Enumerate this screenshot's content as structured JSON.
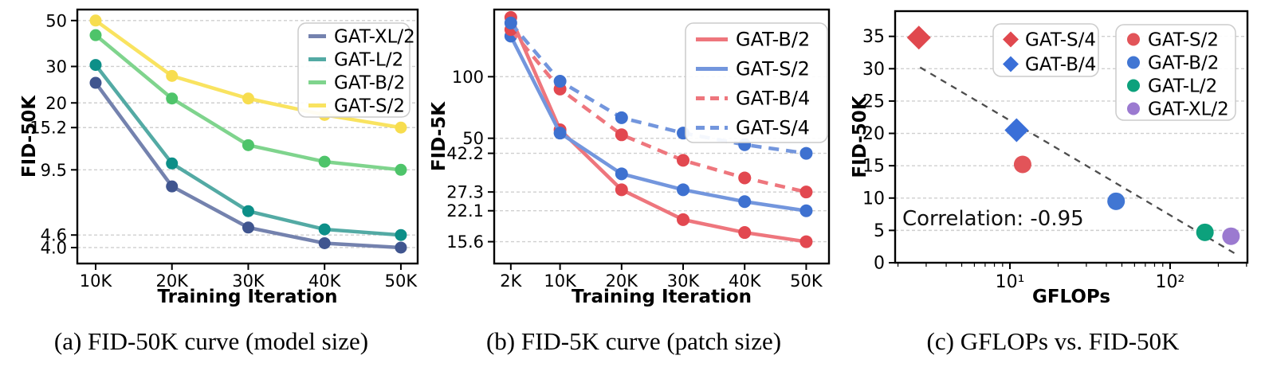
{
  "figure": {
    "background": "#ffffff",
    "gridline_color": "#cfcfcf",
    "frame_color": "#000000"
  },
  "chart_data": [
    {
      "id": "a",
      "type": "line",
      "caption": "(a) FID-50K curve (model size)",
      "xlabel": "Training Iteration",
      "ylabel": "FID-50K",
      "x_scale": "linear",
      "y_scale": "log",
      "grid": "horizontal-dashed",
      "legend_position": "top-right",
      "x": [
        10000,
        20000,
        30000,
        40000,
        50000
      ],
      "x_tick_labels": [
        "10K",
        "20K",
        "30K",
        "40K",
        "50K"
      ],
      "x_range": [
        7600,
        52200
      ],
      "y_range": [
        3.35,
        56.5
      ],
      "y_ticks": [
        50,
        30,
        20,
        15.2,
        9.5,
        4.6,
        4.0
      ],
      "y_tick_labels": [
        "50",
        "30",
        "20",
        "15.2",
        "9.5",
        "4.6",
        "4.0"
      ],
      "series": [
        {
          "name": "GAT-XL/2",
          "values": [
            25.0,
            7.9,
            5.0,
            4.2,
            4.0
          ],
          "line_color": "#7482ae",
          "marker_color": "#40558f",
          "dash": false
        },
        {
          "name": "GAT-L/2",
          "values": [
            30.5,
            10.2,
            6.0,
            4.9,
            4.6
          ],
          "line_color": "#53aaa4",
          "marker_color": "#0d8f88",
          "dash": false
        },
        {
          "name": "GAT-B/2",
          "values": [
            42.5,
            21.0,
            12.5,
            10.4,
            9.5
          ],
          "line_color": "#7fd48d",
          "marker_color": "#4ec46a",
          "dash": false
        },
        {
          "name": "GAT-S/2",
          "values": [
            50.0,
            27.0,
            21.0,
            17.5,
            15.2
          ],
          "line_color": "#f9e360",
          "marker_color": "#f7dd4f",
          "dash": false
        }
      ]
    },
    {
      "id": "b",
      "type": "line",
      "caption": "(b) FID-5K curve (patch size)",
      "xlabel": "Training Iteration",
      "ylabel": "FID-5K",
      "x_scale": "linear",
      "y_scale": "log",
      "grid": "horizontal-dashed",
      "legend_position": "top-right",
      "x": [
        2000,
        10000,
        20000,
        30000,
        40000,
        50000
      ],
      "x_tick_labels": [
        "2K",
        "10K",
        "20K",
        "30K",
        "40K",
        "50K"
      ],
      "x_range": [
        -700,
        53700
      ],
      "y_range": [
        12.2,
        213
      ],
      "y_ticks": [
        100,
        50,
        42.2,
        27.3,
        22.1,
        15.6
      ],
      "y_tick_labels": [
        "100",
        "50",
        "42.2",
        "27.3",
        "22.1",
        "15.6"
      ],
      "series": [
        {
          "name": "GAT-B/2",
          "values": [
            195,
            55,
            28,
            20,
            17.3,
            15.6
          ],
          "line_color": "#ee767d",
          "marker_color": "#e24850",
          "dash": false
        },
        {
          "name": "GAT-S/2",
          "values": [
            158,
            53,
            33.5,
            28,
            24.5,
            22.1
          ],
          "line_color": "#7396dd",
          "marker_color": "#3e71d0",
          "dash": false
        },
        {
          "name": "GAT-B/4",
          "values": [
            170,
            87,
            52,
            39,
            32,
            27.3
          ],
          "line_color": "#ee767d",
          "marker_color": "#e24850",
          "dash": true
        },
        {
          "name": "GAT-S/4",
          "values": [
            183,
            95,
            63,
            53,
            46.5,
            42.2
          ],
          "line_color": "#7396dd",
          "marker_color": "#3e71d0",
          "dash": true
        }
      ]
    },
    {
      "id": "c",
      "type": "scatter",
      "caption": "(c) GFLOPs vs. FID-50K",
      "xlabel": "GFLOPs",
      "ylabel": "FID-50K",
      "x_scale": "log",
      "y_scale": "linear",
      "grid": "horizontal-dashed",
      "x_range": [
        1.92,
        304
      ],
      "y_range": [
        0,
        38.9
      ],
      "x_tick_values": [
        10,
        100
      ],
      "x_tick_labels": [
        "10¹",
        "10²"
      ],
      "y_ticks": [
        0,
        5,
        10,
        15,
        20,
        25,
        30,
        35
      ],
      "y_tick_labels": [
        "0",
        "5",
        "10",
        "15",
        "20",
        "25",
        "30",
        "35"
      ],
      "annotation": "Correlation: -0.95",
      "trend_line": {
        "x_start": 2.75,
        "y_start": 30.2,
        "x_end": 255,
        "y_end": 1.4,
        "color": "#4d4d4d",
        "style": "dashed"
      },
      "points": [
        {
          "name": "GAT-S/4",
          "marker": "diamond",
          "color": "#e0484e",
          "gflops": 2.7,
          "fid": 34.8
        },
        {
          "name": "GAT-B/4",
          "marker": "diamond",
          "color": "#3a6fd8",
          "gflops": 11,
          "fid": 20.5
        },
        {
          "name": "GAT-S/2",
          "marker": "circle",
          "color": "#e25459",
          "gflops": 12,
          "fid": 15.2
        },
        {
          "name": "GAT-B/2",
          "marker": "circle",
          "color": "#4176d3",
          "gflops": 46,
          "fid": 9.5
        },
        {
          "name": "GAT-L/2",
          "marker": "circle",
          "color": "#0ca17c",
          "gflops": 165,
          "fid": 4.7
        },
        {
          "name": "GAT-XL/2",
          "marker": "circle",
          "color": "#9b7ad0",
          "gflops": 240,
          "fid": 4.1
        }
      ],
      "legends": [
        {
          "items": [
            {
              "label": "GAT-S/4",
              "marker": "diamond",
              "color": "#e0484e"
            },
            {
              "label": "GAT-B/4",
              "marker": "diamond",
              "color": "#3a6fd8"
            }
          ]
        },
        {
          "items": [
            {
              "label": "GAT-S/2",
              "marker": "circle",
              "color": "#e25459"
            },
            {
              "label": "GAT-B/2",
              "marker": "circle",
              "color": "#4176d3"
            },
            {
              "label": "GAT-L/2",
              "marker": "circle",
              "color": "#0ca17c"
            },
            {
              "label": "GAT-XL/2",
              "marker": "circle",
              "color": "#9b7ad0"
            }
          ]
        }
      ]
    }
  ]
}
